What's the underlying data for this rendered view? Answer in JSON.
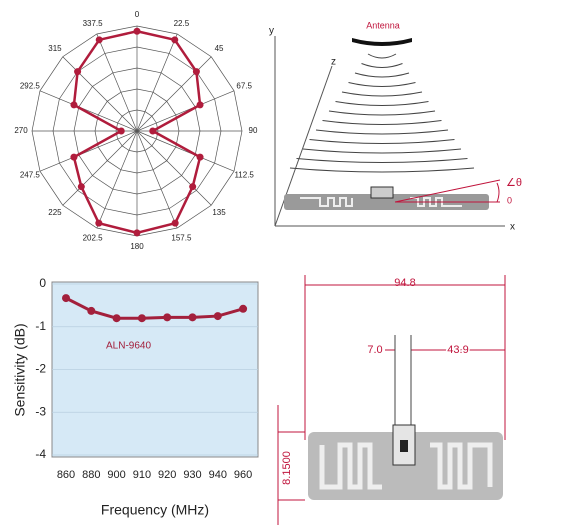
{
  "chart_data": [
    {
      "type": "polar",
      "theta": [
        0,
        22.5,
        45,
        67.5,
        90,
        112.5,
        135,
        157.5,
        180,
        202.5,
        225,
        247.5,
        270,
        292.5,
        315,
        337.5
      ],
      "r": [
        0.95,
        0.94,
        0.8,
        0.65,
        0.15,
        0.65,
        0.75,
        0.95,
        0.97,
        0.95,
        0.75,
        0.65,
        0.15,
        0.65,
        0.8,
        0.94
      ],
      "rlim": [
        0,
        1
      ],
      "rticks": [
        0.2,
        0.4,
        0.6,
        0.8,
        1
      ],
      "color": "#b01c3c",
      "grid": true
    },
    {
      "type": "line",
      "categories": [
        "860",
        "880",
        "900",
        "910",
        "920",
        "930",
        "940",
        "960"
      ],
      "series": [
        {
          "name": "ALN-9640",
          "color": "#a3203c",
          "values": [
            -0.33,
            -0.63,
            -0.8,
            -0.8,
            -0.78,
            -0.78,
            -0.75,
            -0.58
          ]
        }
      ],
      "ylim": [
        -4,
        0
      ],
      "yticks": [
        -4,
        -3,
        -2,
        -1,
        0
      ],
      "y_label": "Sensitivity (dB)",
      "x_label": "Frequency (MHz)",
      "grid": true
    }
  ],
  "antenna_diagram": {
    "antenna": "Antenna",
    "y_axis": "y",
    "z_axis": "z",
    "x_axis": "x",
    "angle": "∠θ",
    "zero": "0"
  },
  "dimension_diagram": {
    "width": "94.8",
    "gap": "7.0",
    "offset": "43.9",
    "height": "8.1500"
  }
}
